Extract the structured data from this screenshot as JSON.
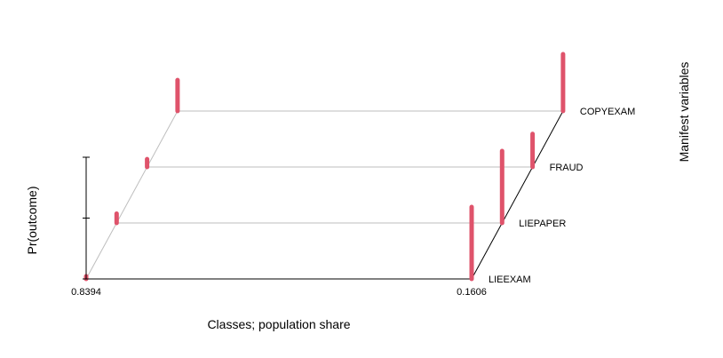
{
  "chart_data": {
    "type": "bar",
    "subtype": "latent-class-3d-profile",
    "title": "",
    "xlabel": "Classes; population share",
    "ylabel": "Pr(outcome)",
    "zlabel": "Manifest variables",
    "classes": [
      "0.8394",
      "0.1606"
    ],
    "variables": [
      "LIEEXAM",
      "LIEPAPER",
      "FRAUD",
      "COPYEXAM"
    ],
    "ylim": [
      0,
      1
    ],
    "series": [
      {
        "class": "0.8394",
        "values": [
          0.02,
          0.13,
          0.11,
          0.43
        ]
      },
      {
        "class": "0.1606",
        "values": [
          1.0,
          1.0,
          0.46,
          0.79
        ]
      }
    ],
    "bar_color": "#DF536B",
    "grid": true
  }
}
